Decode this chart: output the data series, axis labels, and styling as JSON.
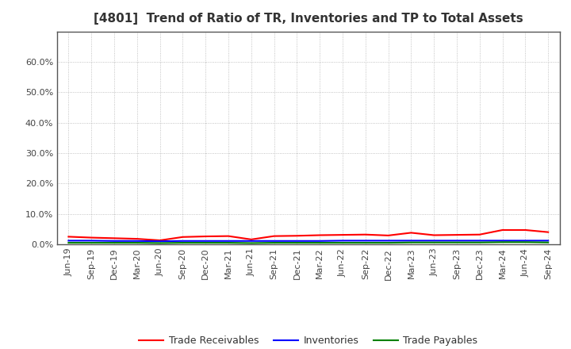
{
  "title": "[4801]  Trend of Ratio of TR, Inventories and TP to Total Assets",
  "x_labels": [
    "Jun-19",
    "Sep-19",
    "Dec-19",
    "Mar-20",
    "Jun-20",
    "Sep-20",
    "Dec-20",
    "Mar-21",
    "Jun-21",
    "Sep-21",
    "Dec-21",
    "Mar-22",
    "Jun-22",
    "Sep-22",
    "Dec-22",
    "Mar-23",
    "Jun-23",
    "Sep-23",
    "Dec-23",
    "Mar-24",
    "Jun-24",
    "Sep-24"
  ],
  "trade_receivables": [
    0.025,
    0.022,
    0.02,
    0.018,
    0.013,
    0.024,
    0.026,
    0.027,
    0.016,
    0.027,
    0.028,
    0.03,
    0.031,
    0.032,
    0.029,
    0.038,
    0.03,
    0.031,
    0.032,
    0.047,
    0.047,
    0.04
  ],
  "inventories": [
    0.012,
    0.012,
    0.011,
    0.011,
    0.01,
    0.011,
    0.011,
    0.011,
    0.011,
    0.011,
    0.011,
    0.011,
    0.012,
    0.012,
    0.012,
    0.012,
    0.012,
    0.012,
    0.012,
    0.012,
    0.012,
    0.012
  ],
  "trade_payables": [
    0.005,
    0.005,
    0.005,
    0.005,
    0.004,
    0.005,
    0.005,
    0.005,
    0.004,
    0.005,
    0.005,
    0.005,
    0.005,
    0.005,
    0.005,
    0.006,
    0.006,
    0.006,
    0.006,
    0.007,
    0.007,
    0.006
  ],
  "colors": {
    "trade_receivables": "#FF0000",
    "inventories": "#0000FF",
    "trade_payables": "#008000"
  },
  "ylim": [
    0.0,
    0.7
  ],
  "yticks": [
    0.0,
    0.1,
    0.2,
    0.3,
    0.4,
    0.5,
    0.6
  ],
  "background_color": "#FFFFFF",
  "plot_bg_color": "#FFFFFF",
  "grid_color": "#AAAAAA",
  "legend_labels": [
    "Trade Receivables",
    "Inventories",
    "Trade Payables"
  ],
  "title_fontsize": 11,
  "tick_fontsize": 8,
  "legend_fontsize": 9,
  "spine_color": "#555555"
}
